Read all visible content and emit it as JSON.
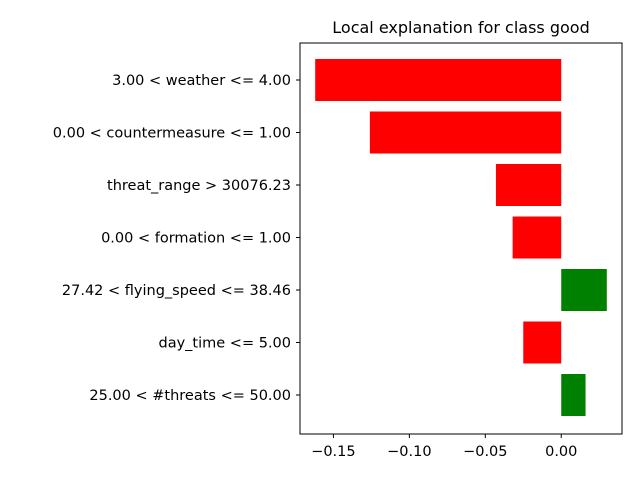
{
  "chart_data": {
    "type": "bar",
    "orientation": "horizontal",
    "title": "Local explanation for class good",
    "xlabel": "",
    "ylabel": "",
    "categories": [
      "3.00 < weather <= 4.00",
      "0.00 < countermeasure <= 1.00",
      "threat_range > 30076.23",
      "0.00 < formation <= 1.00",
      "27.42 < flying_speed <= 38.46",
      "day_time <= 5.00",
      "25.00 < #threats <= 50.00"
    ],
    "values": [
      -0.162,
      -0.126,
      -0.043,
      -0.032,
      0.03,
      -0.025,
      0.016
    ],
    "xlim": [
      -0.172,
      0.04
    ],
    "xticks": [
      -0.15,
      -0.1,
      -0.05,
      0.0
    ],
    "xtick_labels": [
      "−0.15",
      "−0.10",
      "−0.05",
      "0.00"
    ],
    "colors": {
      "positive": "#008000",
      "negative": "#ff0000"
    },
    "grid": false,
    "legend": "none"
  }
}
